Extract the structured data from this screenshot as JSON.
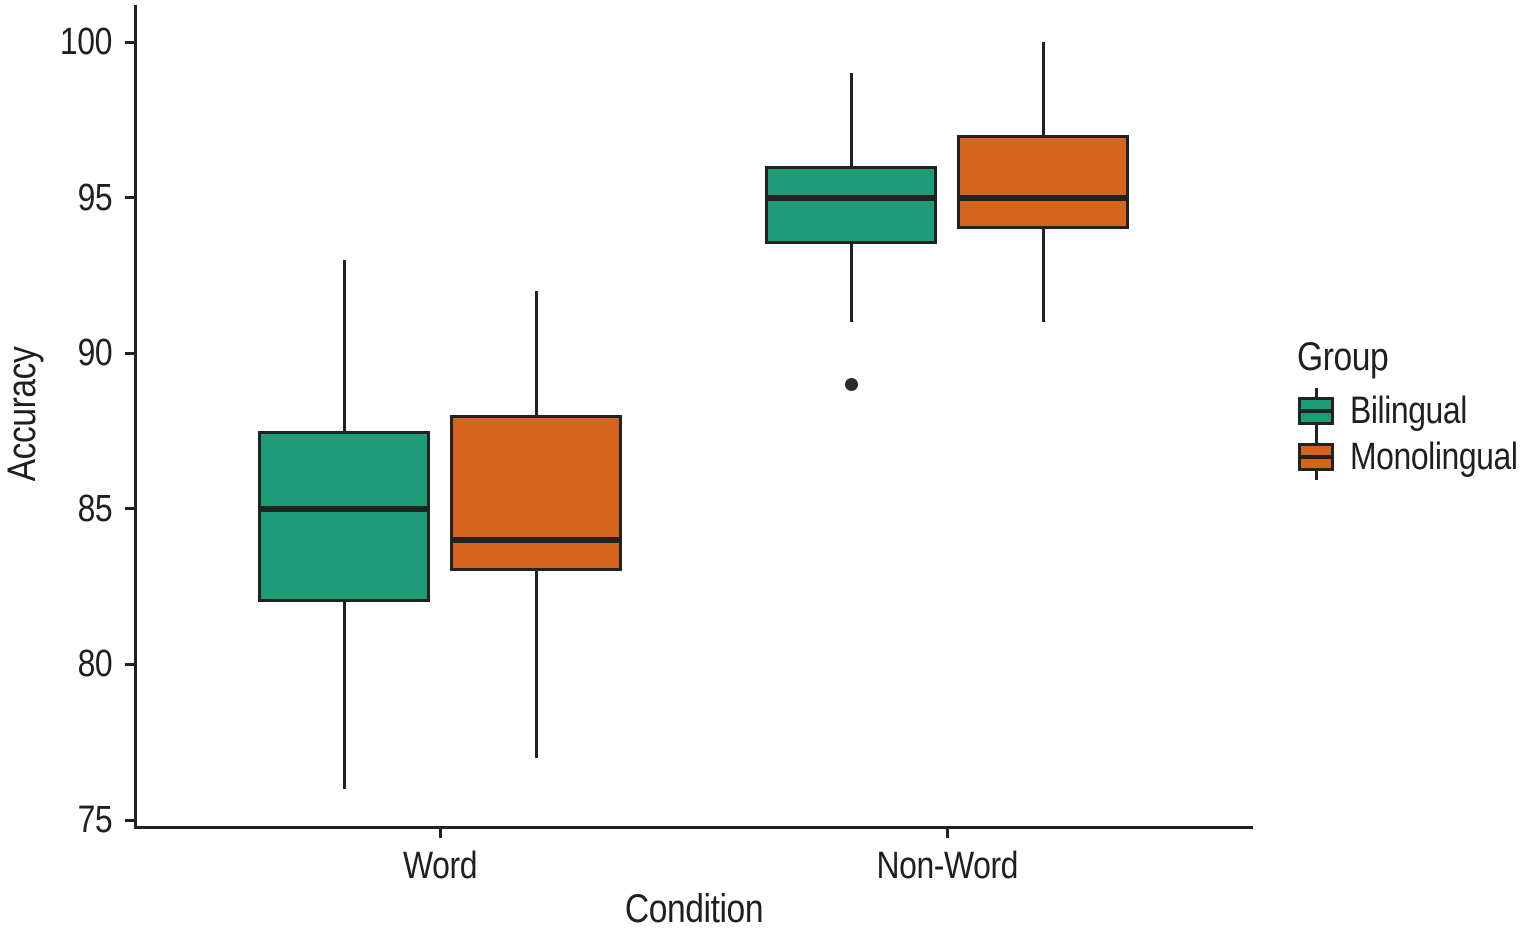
{
  "chart_data": {
    "type": "boxplot",
    "title": "",
    "xlabel": "Condition",
    "ylabel": "Accuracy",
    "ylim": [
      75,
      100
    ],
    "yticks": [
      75,
      80,
      85,
      90,
      95,
      100
    ],
    "ytick_labels": [
      "75",
      "80",
      "85",
      "90",
      "95",
      "100"
    ],
    "categories": [
      "Word",
      "Non-Word"
    ],
    "grid": "off",
    "legend_title": "Group",
    "legend_position": "right",
    "ink_color": "#222222",
    "outlier_color": "#2b2b2b",
    "series": [
      {
        "name": "Bilingual",
        "color": "#1E9C77",
        "boxes": [
          {
            "category": "Word",
            "min": 76,
            "q1": 82,
            "median": 85,
            "q3": 87.5,
            "max": 93,
            "outliers": []
          },
          {
            "category": "Non-Word",
            "min": 91,
            "q1": 93.5,
            "median": 95,
            "q3": 96,
            "max": 99,
            "outliers": [
              89
            ]
          }
        ]
      },
      {
        "name": "Monolingual",
        "color": "#D5641D",
        "boxes": [
          {
            "category": "Word",
            "min": 77,
            "q1": 83,
            "median": 84,
            "q3": 88,
            "max": 92,
            "outliers": []
          },
          {
            "category": "Non-Word",
            "min": 91,
            "q1": 94,
            "median": 95,
            "q3": 97,
            "max": 100,
            "outliers": []
          }
        ]
      }
    ]
  }
}
